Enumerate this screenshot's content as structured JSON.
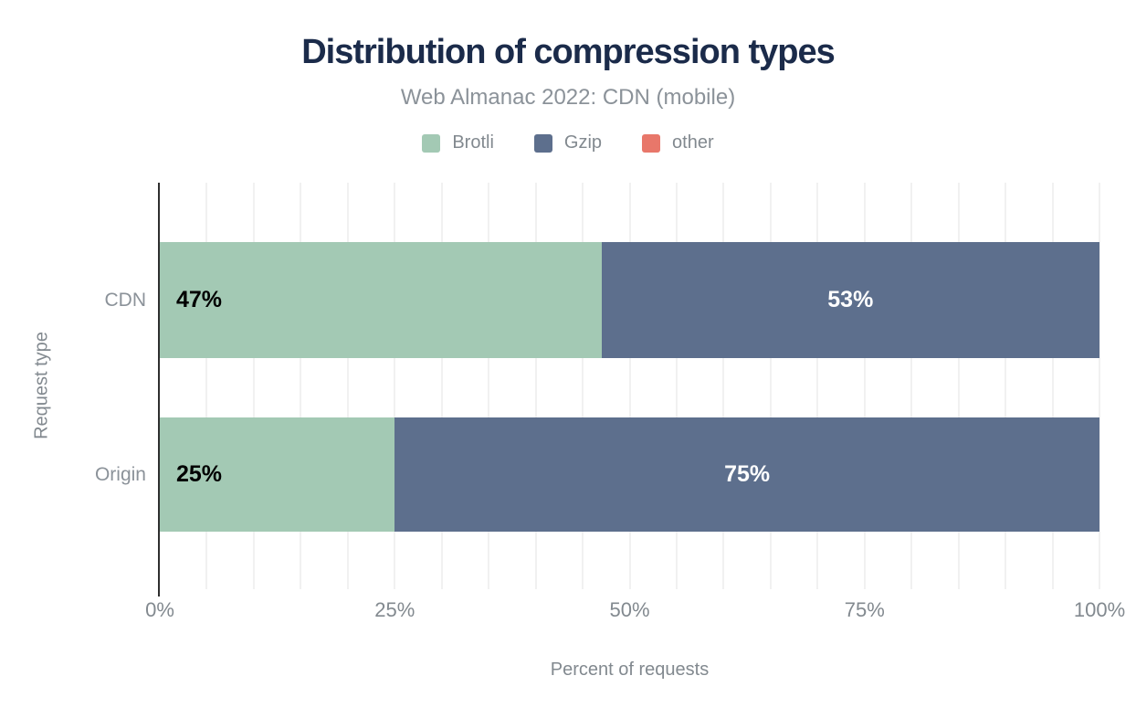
{
  "title": "Distribution of compression types",
  "subtitle": "Web Almanac 2022: CDN (mobile)",
  "chart_data": {
    "type": "bar",
    "orientation": "horizontal",
    "stacked": true,
    "title": "Distribution of compression types",
    "subtitle": "Web Almanac 2022: CDN (mobile)",
    "categories": [
      "CDN",
      "Origin"
    ],
    "series": [
      {
        "name": "Brotli",
        "color": "#a3c9b4",
        "values": [
          47,
          25
        ],
        "label_color": "#000000",
        "label_align": "left"
      },
      {
        "name": "Gzip",
        "color": "#5d6f8d",
        "values": [
          53,
          75
        ],
        "label_color": "#ffffff",
        "label_align": "center"
      },
      {
        "name": "other",
        "color": "#e8776a",
        "values": [
          0,
          0
        ],
        "label_color": "#ffffff",
        "label_align": "center"
      }
    ],
    "bar_labels": [
      [
        "47%",
        "53%",
        ""
      ],
      [
        "25%",
        "75%",
        ""
      ]
    ],
    "xlabel": "Percent of requests",
    "ylabel": "Request type",
    "xlim": [
      0,
      100
    ],
    "xticks": [
      0,
      25,
      50,
      75,
      100
    ],
    "xtick_labels": [
      "0%",
      "25%",
      "50%",
      "75%",
      "100%"
    ],
    "grid_interval_pct": 5,
    "grid": "vertical",
    "legend_position": "top"
  },
  "legend": [
    {
      "label": "Brotli",
      "color": "#a3c9b4"
    },
    {
      "label": "Gzip",
      "color": "#5d6f8d"
    },
    {
      "label": "other",
      "color": "#e8776a"
    }
  ],
  "colors": {
    "title": "#1b2b4a",
    "muted_text": "#82898f",
    "gridline": "#f1f1f1",
    "axis_line": "#2f2f2f",
    "background": "#ffffff"
  },
  "layout": {
    "bar_tops": [
      65,
      257
    ],
    "bar_heights": [
      127,
      125
    ]
  }
}
